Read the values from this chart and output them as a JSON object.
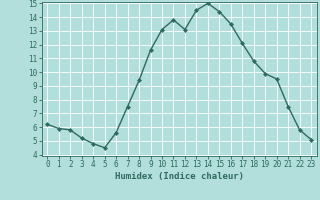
{
  "x": [
    0,
    1,
    2,
    3,
    4,
    5,
    6,
    7,
    8,
    9,
    10,
    11,
    12,
    13,
    14,
    15,
    16,
    17,
    18,
    19,
    20,
    21,
    22,
    23
  ],
  "y": [
    6.2,
    5.9,
    5.8,
    5.2,
    4.8,
    4.5,
    5.6,
    7.5,
    9.4,
    11.6,
    13.1,
    13.8,
    13.1,
    14.5,
    15.0,
    14.4,
    13.5,
    12.1,
    10.8,
    9.9,
    9.5,
    7.5,
    5.8,
    5.1
  ],
  "line_color": "#2e6b5e",
  "marker": "D",
  "marker_size": 2.0,
  "bg_color": "#b2dfdb",
  "grid_color": "#ffffff",
  "xlabel": "Humidex (Indice chaleur)",
  "ylim": [
    4,
    15
  ],
  "xlim": [
    -0.5,
    23.5
  ],
  "yticks": [
    4,
    5,
    6,
    7,
    8,
    9,
    10,
    11,
    12,
    13,
    14,
    15
  ],
  "xticks": [
    0,
    1,
    2,
    3,
    4,
    5,
    6,
    7,
    8,
    9,
    10,
    11,
    12,
    13,
    14,
    15,
    16,
    17,
    18,
    19,
    20,
    21,
    22,
    23
  ],
  "tick_color": "#2e6b5e",
  "label_color": "#2e6b5e",
  "tick_fontsize": 5.5,
  "xlabel_fontsize": 6.5,
  "axis_color": "#2e6b5e",
  "linewidth": 1.0
}
